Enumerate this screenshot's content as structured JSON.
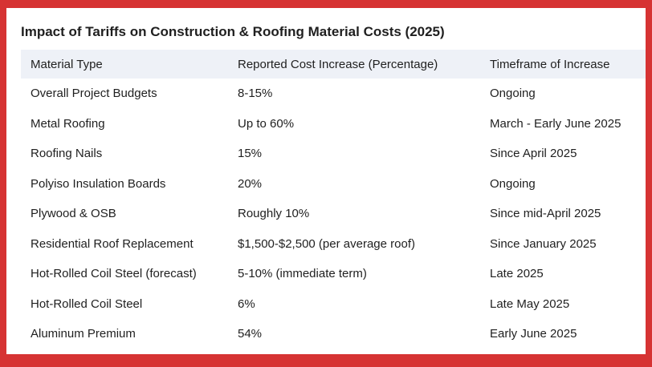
{
  "title": "Impact of Tariffs on Construction & Roofing Material Costs (2025)",
  "table": {
    "headers": [
      "Material Type",
      "Reported Cost Increase (Percentage)",
      "Timeframe of Increase"
    ],
    "rows": [
      [
        "Overall Project Budgets",
        "8-15%",
        "Ongoing"
      ],
      [
        "Metal Roofing",
        "Up to 60%",
        "March - Early June 2025"
      ],
      [
        "Roofing Nails",
        "15%",
        "Since April 2025"
      ],
      [
        "Polyiso Insulation Boards",
        "20%",
        "Ongoing"
      ],
      [
        "Plywood & OSB",
        "Roughly 10%",
        "Since mid-April 2025"
      ],
      [
        "Residential Roof Replacement",
        "$1,500-$2,500 (per average roof)",
        "Since January 2025"
      ],
      [
        "Hot-Rolled Coil Steel (forecast)",
        "5-10% (immediate term)",
        "Late 2025"
      ],
      [
        "Hot-Rolled Coil Steel",
        "6%",
        "Late May 2025"
      ],
      [
        "Aluminum Premium",
        "54%",
        "Early June 2025"
      ]
    ]
  }
}
